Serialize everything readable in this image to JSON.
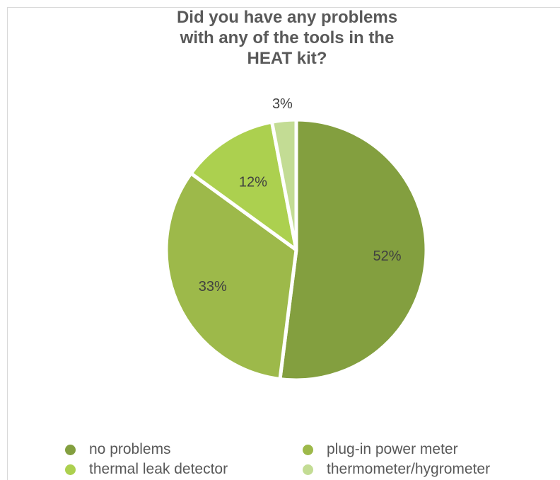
{
  "chart_data": {
    "type": "pie",
    "title": "Did you have any problems\nwith any of the tools in the\nHEAT kit?",
    "slices": [
      {
        "label": "no problems",
        "value": 52,
        "display": "52%",
        "color": "#839f3f"
      },
      {
        "label": "plug-in power meter",
        "value": 33,
        "display": "33%",
        "color": "#9db94a"
      },
      {
        "label": "thermal leak detector",
        "value": 12,
        "display": "12%",
        "color": "#acd04f"
      },
      {
        "label": "thermometer/hygrometer",
        "value": 3,
        "display": "3%",
        "color": "#c3dc94"
      }
    ],
    "legend_position": "bottom"
  }
}
